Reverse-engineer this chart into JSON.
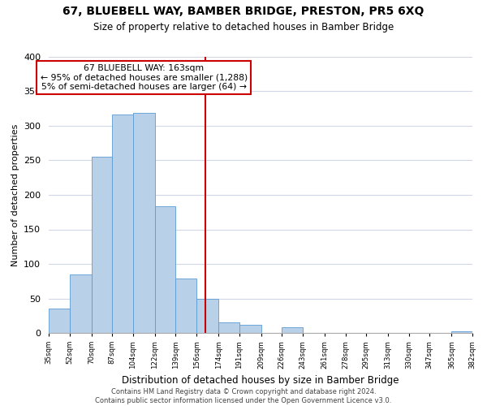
{
  "title": "67, BLUEBELL WAY, BAMBER BRIDGE, PRESTON, PR5 6XQ",
  "subtitle": "Size of property relative to detached houses in Bamber Bridge",
  "xlabel": "Distribution of detached houses by size in Bamber Bridge",
  "ylabel": "Number of detached properties",
  "bar_edges": [
    35,
    52,
    70,
    87,
    104,
    122,
    139,
    156,
    174,
    191,
    209,
    226,
    243,
    261,
    278,
    295,
    313,
    330,
    347,
    365,
    382
  ],
  "bar_heights": [
    35,
    85,
    255,
    316,
    319,
    183,
    79,
    50,
    15,
    12,
    0,
    8,
    0,
    0,
    0,
    0,
    0,
    0,
    0,
    2
  ],
  "bar_color": "#b8d0e8",
  "bar_edge_color": "#5b9bd5",
  "property_line_x": 163,
  "property_line_color": "#cc0000",
  "annotation_box_color": "#cc0000",
  "annotation_lines": [
    "67 BLUEBELL WAY: 163sqm",
    "← 95% of detached houses are smaller (1,288)",
    "5% of semi-detached houses are larger (64) →"
  ],
  "tick_labels": [
    "35sqm",
    "52sqm",
    "70sqm",
    "87sqm",
    "104sqm",
    "122sqm",
    "139sqm",
    "156sqm",
    "174sqm",
    "191sqm",
    "209sqm",
    "226sqm",
    "243sqm",
    "261sqm",
    "278sqm",
    "295sqm",
    "313sqm",
    "330sqm",
    "347sqm",
    "365sqm",
    "382sqm"
  ],
  "ylim": [
    0,
    400
  ],
  "yticks": [
    0,
    50,
    100,
    150,
    200,
    250,
    300,
    350,
    400
  ],
  "footer_lines": [
    "Contains HM Land Registry data © Crown copyright and database right 2024.",
    "Contains public sector information licensed under the Open Government Licence v3.0."
  ],
  "background_color": "#ffffff",
  "grid_color": "#d0d8e8"
}
